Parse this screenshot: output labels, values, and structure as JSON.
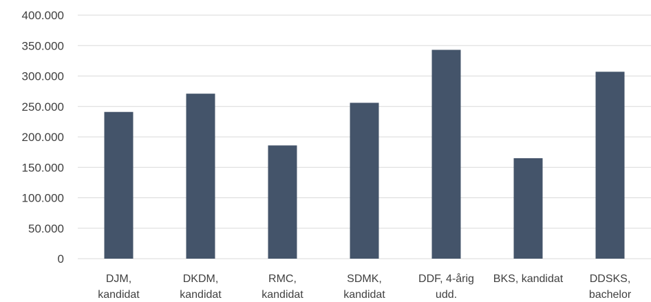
{
  "chart_data": {
    "type": "bar",
    "title": "",
    "xlabel": "",
    "ylabel": "",
    "categories": [
      [
        "DJM,",
        "kandidat"
      ],
      [
        "DKDM,",
        "kandidat"
      ],
      [
        "RMC,",
        "kandidat"
      ],
      [
        "SDMK,",
        "kandidat"
      ],
      [
        "DDF, 4-årig",
        "udd."
      ],
      [
        "BKS, kandidat"
      ],
      [
        "DDSKS,",
        "bachelor"
      ]
    ],
    "values": [
      241000,
      271000,
      186000,
      256000,
      343000,
      165000,
      307000
    ],
    "ylim": [
      0,
      400000
    ],
    "yticks": [
      0,
      50000,
      100000,
      150000,
      200000,
      250000,
      300000,
      350000,
      400000
    ],
    "ytick_labels": [
      "0",
      "50.000",
      "100.000",
      "150.000",
      "200.000",
      "250.000",
      "300.000",
      "350.000",
      "400.000"
    ],
    "grid": true,
    "legend": "none",
    "colors": {
      "bar": "#44546a",
      "grid": "#d9d9d9",
      "text": "#404040"
    }
  }
}
